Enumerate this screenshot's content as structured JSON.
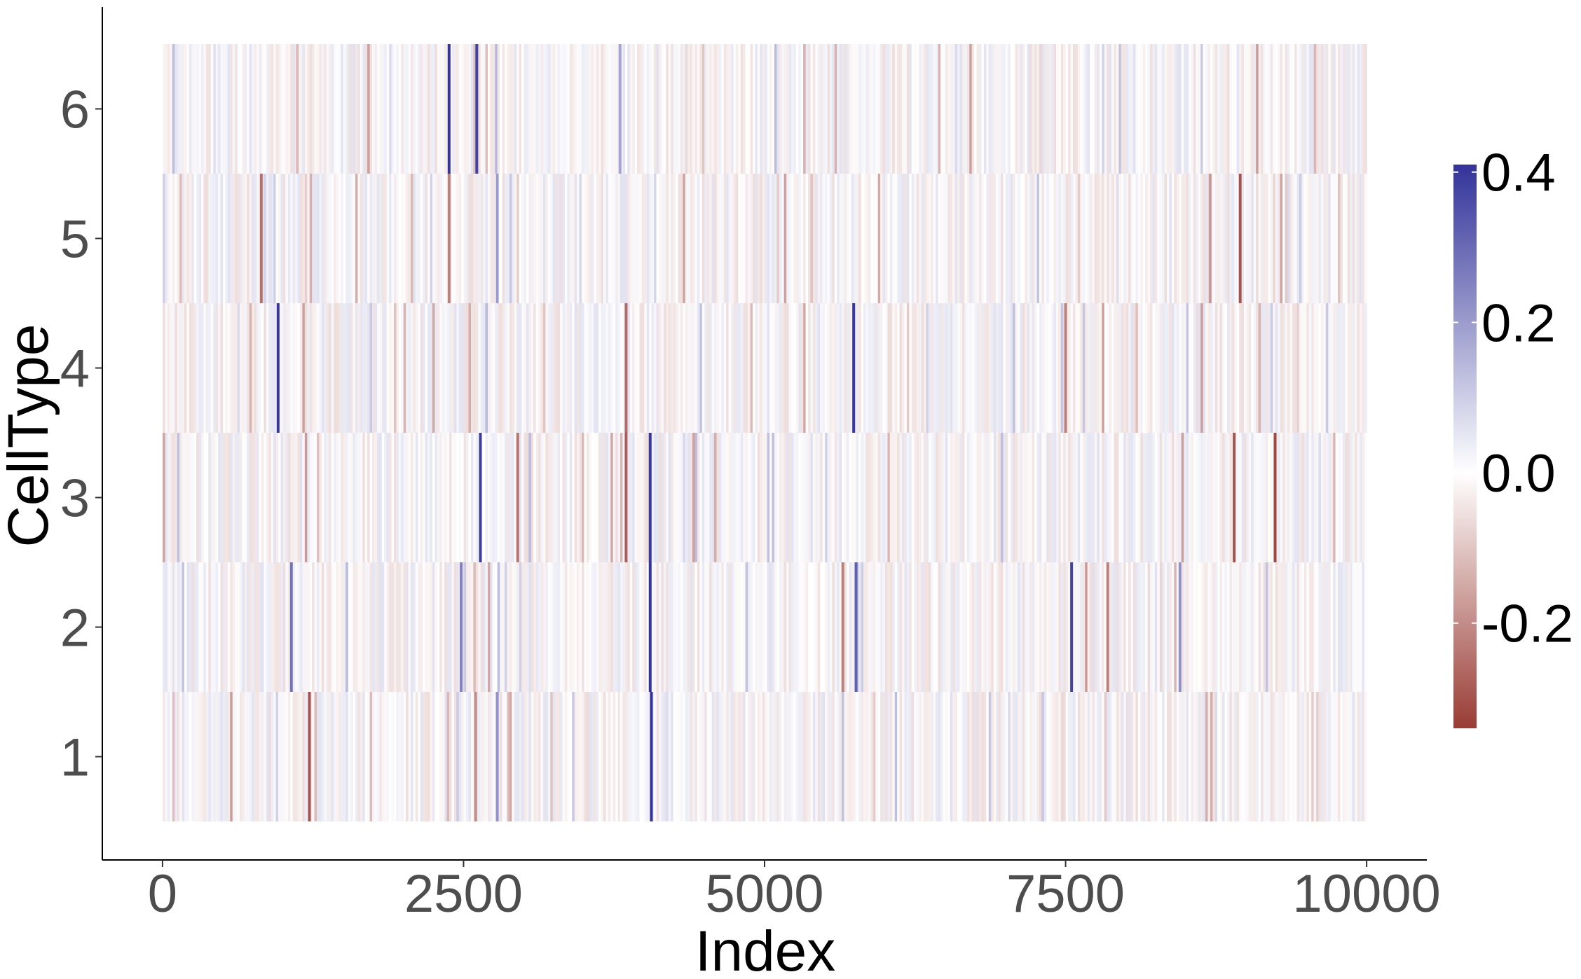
{
  "chart_data": {
    "type": "heatmap",
    "title": "",
    "xlabel": "Index",
    "ylabel": "CellType",
    "x_range": [
      1,
      10000
    ],
    "xlim": [
      -500,
      10500
    ],
    "x_ticks": [
      0,
      2500,
      5000,
      7500,
      10000
    ],
    "x_tick_labels": [
      "0",
      "2500",
      "5000",
      "7500",
      "10000"
    ],
    "y_categories": [
      "1",
      "2",
      "3",
      "4",
      "5",
      "6"
    ],
    "grid": false,
    "legend": {
      "position": "right",
      "type": "colorbar",
      "range": [
        -0.34,
        0.41
      ],
      "ticks": [
        0.4,
        0.2,
        0.0,
        -0.2
      ],
      "tick_labels": [
        "0.4",
        "0.2",
        "0.0",
        "-0.2"
      ],
      "low_color": "#993c35",
      "mid_color": "#ffffff",
      "high_color": "#33339a"
    },
    "prominent_values": [
      {
        "celltype": "6",
        "index": 2380,
        "value": 0.41
      },
      {
        "celltype": "6",
        "index": 2610,
        "value": 0.38
      },
      {
        "celltype": "6",
        "index": 3800,
        "value": 0.18
      },
      {
        "celltype": "6",
        "index": 1120,
        "value": -0.12
      },
      {
        "celltype": "5",
        "index": 820,
        "value": -0.25
      },
      {
        "celltype": "5",
        "index": 2380,
        "value": -0.22
      },
      {
        "celltype": "5",
        "index": 2780,
        "value": 0.2
      },
      {
        "celltype": "5",
        "index": 8950,
        "value": -0.3
      },
      {
        "celltype": "5",
        "index": 8700,
        "value": -0.18
      },
      {
        "celltype": "4",
        "index": 960,
        "value": 0.4
      },
      {
        "celltype": "4",
        "index": 3850,
        "value": -0.26
      },
      {
        "celltype": "4",
        "index": 5740,
        "value": 0.4
      },
      {
        "celltype": "4",
        "index": 7500,
        "value": -0.22
      },
      {
        "celltype": "3",
        "index": 2640,
        "value": 0.39
      },
      {
        "celltype": "3",
        "index": 2950,
        "value": -0.24
      },
      {
        "celltype": "3",
        "index": 3850,
        "value": -0.28
      },
      {
        "celltype": "3",
        "index": 4050,
        "value": 0.4
      },
      {
        "celltype": "3",
        "index": 8900,
        "value": -0.3
      },
      {
        "celltype": "3",
        "index": 9240,
        "value": -0.32
      },
      {
        "celltype": "2",
        "index": 1070,
        "value": 0.28
      },
      {
        "celltype": "2",
        "index": 2480,
        "value": 0.25
      },
      {
        "celltype": "2",
        "index": 4050,
        "value": 0.41
      },
      {
        "celltype": "2",
        "index": 5650,
        "value": -0.22
      },
      {
        "celltype": "2",
        "index": 5760,
        "value": 0.32
      },
      {
        "celltype": "2",
        "index": 7550,
        "value": 0.38
      },
      {
        "celltype": "2",
        "index": 7850,
        "value": -0.22
      },
      {
        "celltype": "2",
        "index": 8450,
        "value": 0.22
      },
      {
        "celltype": "1",
        "index": 1220,
        "value": -0.3
      },
      {
        "celltype": "1",
        "index": 2600,
        "value": -0.2
      },
      {
        "celltype": "1",
        "index": 2780,
        "value": 0.22
      },
      {
        "celltype": "1",
        "index": 4060,
        "value": 0.41
      }
    ]
  }
}
